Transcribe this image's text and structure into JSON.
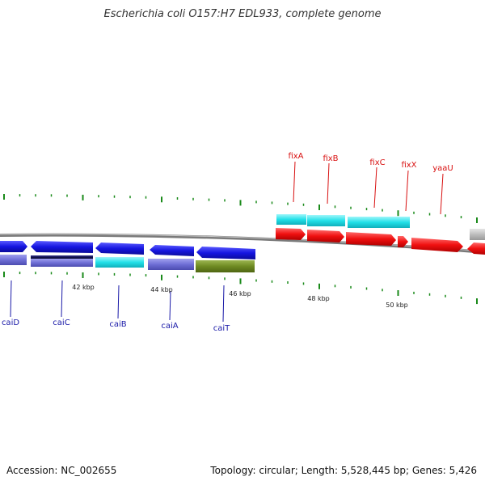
{
  "title": "Escherichia coli O157:H7 EDL933, complete genome",
  "footer": {
    "accession": "Accession: NC_002655",
    "summary": "Topology: circular; Length: 5,528,445 bp; Genes: 5,426"
  },
  "colors": {
    "backbone": "#7a7a7a",
    "tick": "#1a8a1a",
    "blue_gene": "#1515e0",
    "periwinkle": "#6f6fd6",
    "navy": "#121250",
    "cyan": "#22e0e8",
    "olive": "#6e8a22",
    "red": "#f01010",
    "grey": "#bdbdbd",
    "blue_label": "#1a1aa8",
    "red_label": "#d81010"
  },
  "scale_labels": [
    "42 kbp",
    "44 kbp",
    "46 kbp",
    "48 kbp",
    "50 kbp"
  ],
  "genes_lower": [
    "caiD",
    "caiC",
    "caiB",
    "caiA",
    "caiT"
  ],
  "genes_upper": [
    "fixA",
    "fixB",
    "fixC",
    "fixX",
    "yaaU"
  ]
}
